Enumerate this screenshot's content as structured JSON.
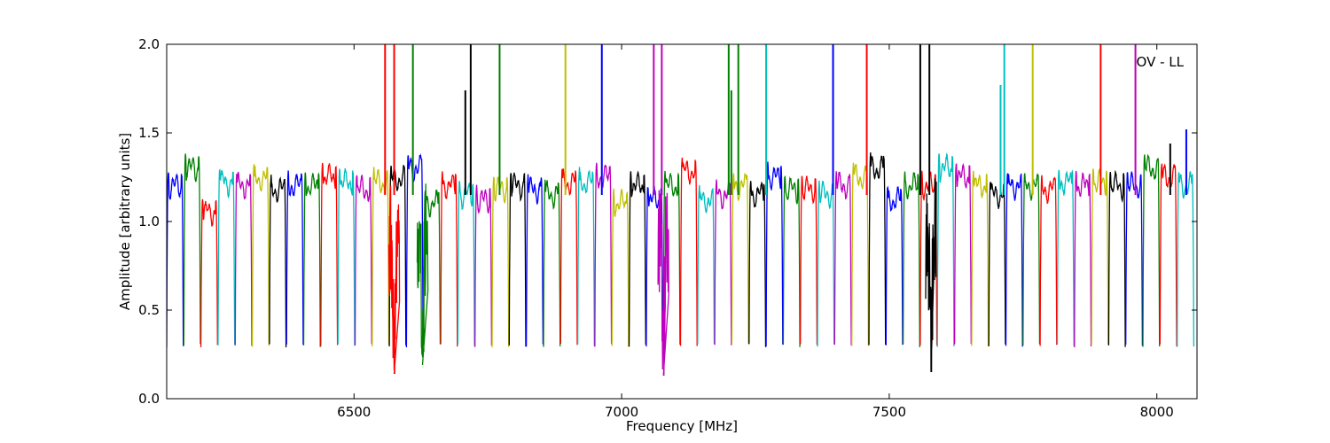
{
  "chart_data": {
    "type": "line",
    "title": "",
    "annotation": "OV - LL",
    "xlabel": "Frequency [MHz]",
    "ylabel": "Amplitude [arbitrary units]",
    "xlim": [
      6150,
      8075
    ],
    "ylim": [
      0.0,
      2.0
    ],
    "x_ticks": [
      6500,
      7000,
      7500,
      8000
    ],
    "x_tick_labels": [
      "6500",
      "7000",
      "7500",
      "8000"
    ],
    "y_ticks": [
      0.0,
      0.5,
      1.0,
      1.5,
      2.0
    ],
    "y_tick_labels": [
      "0.0",
      "0.5",
      "1.0",
      "1.5",
      "2.0"
    ],
    "grid": false,
    "legend": "none",
    "color_cycle": [
      "#0000ff",
      "#008000",
      "#ff0000",
      "#00bfbf",
      "#bf00bf",
      "#bfbf00",
      "#000000"
    ],
    "channel_width_mhz": 32,
    "channels_start_mhz": 6150,
    "channel_count": 60,
    "channel_plateaus": [
      1.2,
      1.3,
      1.05,
      1.22,
      1.2,
      1.24,
      1.18,
      1.2,
      1.2,
      1.25,
      1.22,
      1.18,
      1.22,
      1.24,
      1.3,
      1.1,
      1.2,
      1.15,
      1.12,
      1.18,
      1.2,
      1.18,
      1.15,
      1.22,
      1.22,
      1.25,
      1.1,
      1.2,
      1.12,
      1.2,
      1.28,
      1.12,
      1.15,
      1.2,
      1.15,
      1.25,
      1.18,
      1.18,
      1.15,
      1.2,
      1.25,
      1.3,
      1.12,
      1.2,
      1.2,
      1.3,
      1.25,
      1.2,
      1.15,
      1.2,
      1.2,
      1.18,
      1.22,
      1.2,
      1.22,
      1.2,
      1.2,
      1.3,
      1.25,
      1.2
    ],
    "rfi_spikes": [
      {
        "x": 6558,
        "y": 2.0,
        "color": "#ff0000"
      },
      {
        "x": 6575,
        "y": 2.0,
        "color": "#ff0000"
      },
      {
        "x": 6610,
        "y": 2.0,
        "color": "#008000"
      },
      {
        "x": 6708,
        "y": 1.74,
        "color": "#000000"
      },
      {
        "x": 6718,
        "y": 2.0,
        "color": "#000000"
      },
      {
        "x": 6772,
        "y": 2.0,
        "color": "#008000"
      },
      {
        "x": 6895,
        "y": 2.0,
        "color": "#bfbf00"
      },
      {
        "x": 6963,
        "y": 2.0,
        "color": "#0000ff"
      },
      {
        "x": 7060,
        "y": 2.0,
        "color": "#bf00bf"
      },
      {
        "x": 7075,
        "y": 2.0,
        "color": "#bf00bf"
      },
      {
        "x": 7200,
        "y": 2.0,
        "color": "#008000"
      },
      {
        "x": 7205,
        "y": 1.74,
        "color": "#008000"
      },
      {
        "x": 7218,
        "y": 2.0,
        "color": "#008000"
      },
      {
        "x": 7270,
        "y": 2.0,
        "color": "#00bfbf"
      },
      {
        "x": 7395,
        "y": 2.0,
        "color": "#0000ff"
      },
      {
        "x": 7458,
        "y": 2.0,
        "color": "#ff0000"
      },
      {
        "x": 7558,
        "y": 2.0,
        "color": "#000000"
      },
      {
        "x": 7575,
        "y": 2.0,
        "color": "#000000"
      },
      {
        "x": 7708,
        "y": 1.77,
        "color": "#00bfbf"
      },
      {
        "x": 7715,
        "y": 2.0,
        "color": "#00bfbf"
      },
      {
        "x": 7768,
        "y": 2.0,
        "color": "#bfbf00"
      },
      {
        "x": 7895,
        "y": 2.0,
        "color": "#ff0000"
      },
      {
        "x": 7960,
        "y": 2.0,
        "color": "#bf00bf"
      },
      {
        "x": 8025,
        "y": 1.44,
        "color": "#000000"
      },
      {
        "x": 8055,
        "y": 1.52,
        "color": "#0000ff"
      }
    ],
    "noisy_dips": [
      {
        "x": 6575,
        "y": 0.14,
        "color": "#ff0000"
      },
      {
        "x": 6628,
        "y": 0.19,
        "color": "#008000"
      },
      {
        "x": 7078,
        "y": 0.13,
        "color": "#bf00bf"
      },
      {
        "x": 7578,
        "y": 0.15,
        "color": "#000000"
      }
    ]
  }
}
